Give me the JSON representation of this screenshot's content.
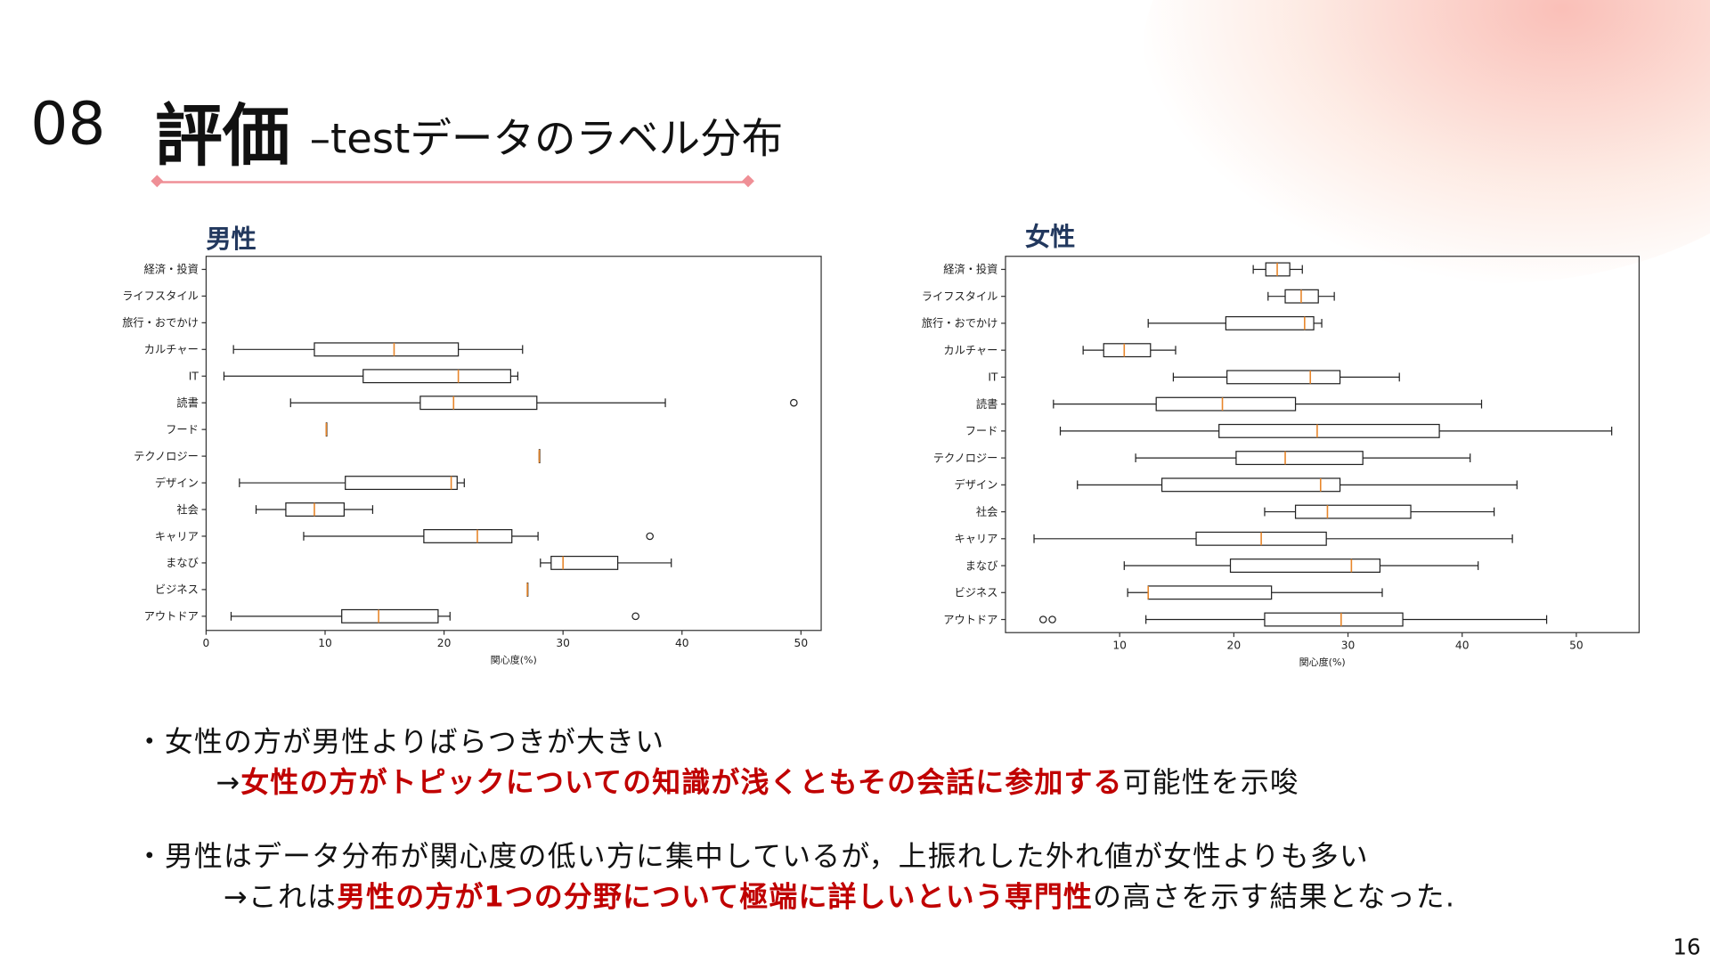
{
  "slide": {
    "number": "08",
    "title": "評価",
    "subtitle": "–testデータのラベル分布",
    "page": "16"
  },
  "chart_data": [
    {
      "type": "boxplot",
      "title": "男性",
      "xlabel": "関心度(%)",
      "xlim": [
        0,
        51.7
      ],
      "xticks": [
        0,
        10,
        20,
        30,
        40,
        50
      ],
      "categories": [
        "経済・投資",
        "ライフスタイル",
        "旅行・おでかけ",
        "カルチャー",
        "IT",
        "読書",
        "フード",
        "テクノロジー",
        "デザイン",
        "社会",
        "キャリア",
        "まなび",
        "ビジネス",
        "アウトドア"
      ],
      "boxes": [
        null,
        null,
        null,
        [
          2.3,
          9.1,
          15.8,
          21.2,
          26.6
        ],
        [
          1.5,
          13.2,
          21.2,
          25.6,
          26.2
        ],
        [
          7.1,
          18.0,
          20.8,
          27.8,
          38.6
        ],
        [
          10.1,
          10.1,
          10.1,
          10.1,
          10.1
        ],
        [
          28.0,
          28.0,
          28.0,
          28.0,
          28.0
        ],
        [
          2.8,
          11.7,
          20.6,
          21.1,
          21.7
        ],
        [
          4.2,
          6.7,
          9.1,
          11.6,
          14.0
        ],
        [
          8.2,
          18.3,
          22.8,
          25.7,
          27.9
        ],
        [
          28.1,
          29.0,
          30.0,
          34.6,
          39.1
        ],
        [
          27.0,
          27.0,
          27.0,
          27.0,
          27.0
        ],
        [
          2.1,
          11.4,
          14.5,
          19.5,
          20.5
        ]
      ],
      "outliers": [
        [],
        [],
        [],
        [],
        [],
        [
          49.4
        ],
        [],
        [],
        [],
        [],
        [
          37.3
        ],
        [],
        [],
        [
          36.1
        ]
      ]
    },
    {
      "type": "boxplot",
      "title": "女性",
      "xlabel": "関心度(%)",
      "xlim": [
        0,
        55.5
      ],
      "xticks": [
        10,
        20,
        30,
        40,
        50
      ],
      "categories": [
        "経済・投資",
        "ライフスタイル",
        "旅行・おでかけ",
        "カルチャー",
        "IT",
        "読書",
        "フード",
        "テクノロジー",
        "デザイン",
        "社会",
        "キャリア",
        "まなび",
        "ビジネス",
        "アウトドア"
      ],
      "boxes": [
        [
          21.7,
          22.8,
          23.8,
          24.9,
          26.0
        ],
        [
          23.0,
          24.5,
          25.9,
          27.4,
          28.8
        ],
        [
          12.5,
          19.3,
          26.2,
          27.0,
          27.7
        ],
        [
          6.8,
          8.6,
          10.4,
          12.7,
          14.9
        ],
        [
          14.7,
          19.4,
          26.7,
          29.3,
          34.5
        ],
        [
          4.2,
          13.2,
          19.0,
          25.4,
          41.7
        ],
        [
          4.8,
          18.7,
          27.3,
          38.0,
          53.1
        ],
        [
          11.4,
          20.2,
          24.5,
          31.3,
          40.7
        ],
        [
          6.3,
          13.7,
          27.6,
          29.3,
          44.8
        ],
        [
          22.7,
          25.4,
          28.2,
          35.5,
          42.8
        ],
        [
          2.5,
          16.7,
          22.4,
          28.1,
          44.4
        ],
        [
          10.4,
          19.7,
          30.3,
          32.8,
          41.4
        ],
        [
          10.7,
          12.5,
          12.5,
          23.3,
          33.0
        ],
        [
          12.3,
          22.7,
          29.4,
          34.8,
          47.4
        ]
      ],
      "outliers": [
        [],
        [],
        [],
        [],
        [],
        [],
        [],
        [],
        [],
        [],
        [],
        [],
        [],
        [
          3.3,
          4.1
        ]
      ]
    }
  ],
  "bullets": [
    {
      "line1": "・女性の方が男性よりばらつきが大きい",
      "arrow": "→",
      "emph": "女性の方がトピックについての知識が浅くともその会話に参加する",
      "rest": "可能性を示唆"
    },
    {
      "line1": "・男性はデータ分布が関心度の低い方に集中しているが，上振れした外れ値が女性よりも多い",
      "arrow": "→これは",
      "emph": "男性の方が1つの分野について極端に詳しいという専門性",
      "rest": "の高さを示す結果となった."
    }
  ]
}
